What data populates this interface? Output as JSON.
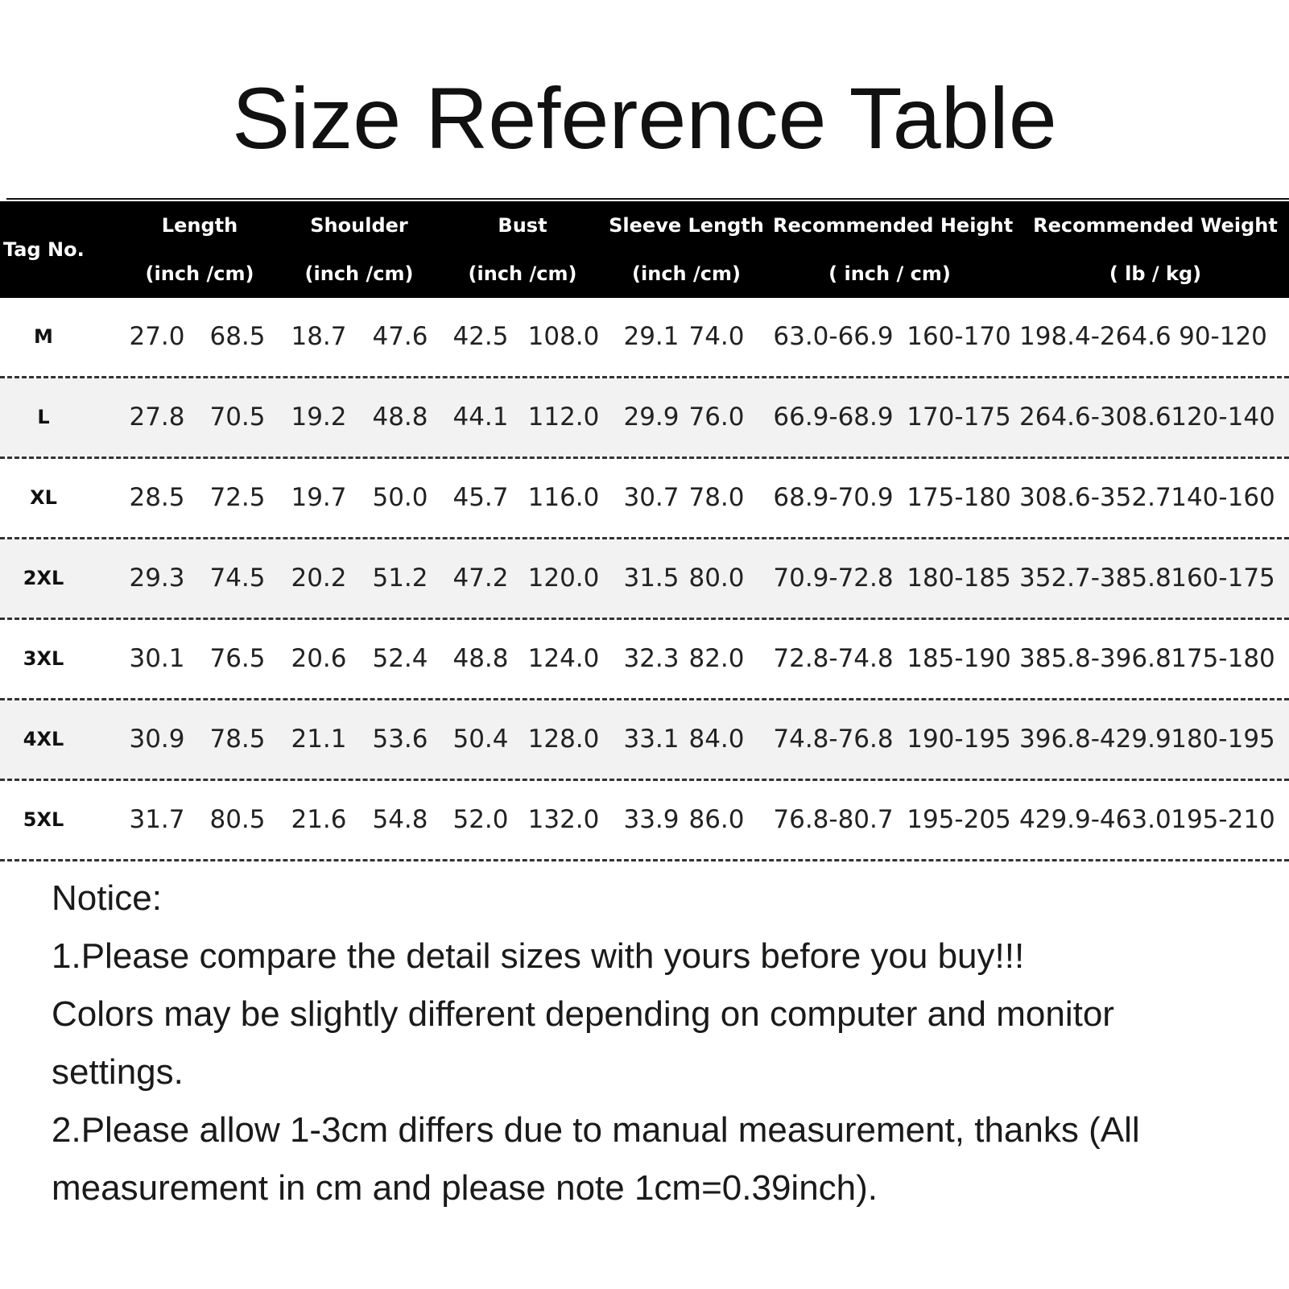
{
  "title": "Size Reference Table",
  "table": {
    "headers": [
      {
        "line1": "Tag No.",
        "line2": ""
      },
      {
        "line1": "Length",
        "line2": "(inch /cm)"
      },
      {
        "line1": "Shoulder",
        "line2": "(inch /cm)"
      },
      {
        "line1": "Bust",
        "line2": "(inch /cm)"
      },
      {
        "line1": "Sleeve Length",
        "line2": "(inch /cm)"
      },
      {
        "line1": "Recommended Height",
        "line2": "( inch / cm)"
      },
      {
        "line1": "Recommended Weight",
        "line2": "( lb  /  kg)"
      }
    ],
    "rows": [
      {
        "tag": "M",
        "values": [
          "27.0",
          "68.5",
          "18.7",
          "47.6",
          "42.5",
          "108.0",
          "29.1",
          "74.0",
          "63.0-66.9",
          "160-170",
          "198.4-264.6",
          "90-120"
        ]
      },
      {
        "tag": "L",
        "values": [
          "27.8",
          "70.5",
          "19.2",
          "48.8",
          "44.1",
          "112.0",
          "29.9",
          "76.0",
          "66.9-68.9",
          "170-175",
          "264.6-308.6",
          "120-140"
        ]
      },
      {
        "tag": "XL",
        "values": [
          "28.5",
          "72.5",
          "19.7",
          "50.0",
          "45.7",
          "116.0",
          "30.7",
          "78.0",
          "68.9-70.9",
          "175-180",
          "308.6-352.7",
          "140-160"
        ]
      },
      {
        "tag": "2XL",
        "values": [
          "29.3",
          "74.5",
          "20.2",
          "51.2",
          "47.2",
          "120.0",
          "31.5",
          "80.0",
          "70.9-72.8",
          "180-185",
          "352.7-385.8",
          "160-175"
        ]
      },
      {
        "tag": "3XL",
        "values": [
          "30.1",
          "76.5",
          "20.6",
          "52.4",
          "48.8",
          "124.0",
          "32.3",
          "82.0",
          "72.8-74.8",
          "185-190",
          "385.8-396.8",
          "175-180"
        ]
      },
      {
        "tag": "4XL",
        "values": [
          "30.9",
          "78.5",
          "21.1",
          "53.6",
          "50.4",
          "128.0",
          "33.1",
          "84.0",
          "74.8-76.8",
          "190-195",
          "396.8-429.9",
          "180-195"
        ]
      },
      {
        "tag": "5XL",
        "values": [
          "31.7",
          "80.5",
          "21.6",
          "54.8",
          "52.0",
          "132.0",
          "33.9",
          "86.0",
          "76.8-80.7",
          "195-205",
          "429.9-463.0",
          "195-210"
        ]
      }
    ]
  },
  "notice": {
    "heading": "Notice:",
    "lines": [
      "1.Please compare the detail sizes with yours before you buy!!!",
      "Colors may be slightly different depending on computer and monitor",
      "settings.",
      "2.Please allow 1-3cm differs due to manual measurement, thanks (All",
      "measurement in cm and please note 1cm=0.39inch)."
    ]
  }
}
